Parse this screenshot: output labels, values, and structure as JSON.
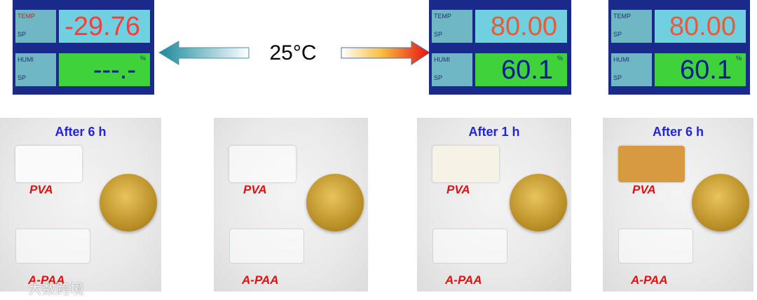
{
  "displays": [
    {
      "temp_label": "TEMP",
      "sp_label": "SP",
      "humi_label": "HUMI",
      "unit": "%",
      "temp": "-29.76",
      "humi": "---.-"
    },
    {
      "temp_label": "TEMP",
      "sp_label": "SP",
      "humi_label": "HUMI",
      "unit": "%",
      "temp": "80.00",
      "humi": "60.1"
    },
    {
      "temp_label": "TEMP",
      "sp_label": "SP",
      "humi_label": "HUMI",
      "unit": "%",
      "temp": "80.00",
      "humi": "60.1"
    }
  ],
  "center_label": "25°C",
  "panels": [
    {
      "caption": "After 6 h",
      "top_sample": "PVA",
      "bottom_sample": "A-PAA"
    },
    {
      "top_sample": "PVA",
      "bottom_sample": "A-PAA"
    },
    {
      "caption": "After 1 h",
      "top_sample": "PVA",
      "bottom_sample": "A-PAA"
    },
    {
      "caption": "After 6 h",
      "top_sample": "PVA",
      "bottom_sample": "A-PAA"
    }
  ],
  "watermark": "大数跨境"
}
